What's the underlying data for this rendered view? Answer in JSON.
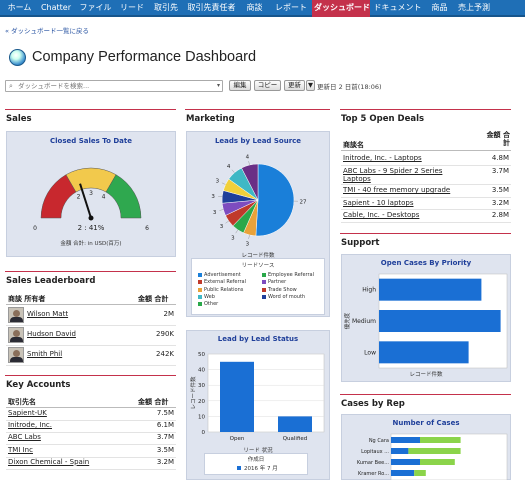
{
  "nav": {
    "tabs": [
      {
        "label": "ホーム",
        "active": false
      },
      {
        "label": "Chatter",
        "active": false
      },
      {
        "label": "ファイル",
        "active": false
      },
      {
        "label": "リード",
        "active": false
      },
      {
        "label": "取引先",
        "active": false
      },
      {
        "label": "取引先責任者",
        "active": false
      },
      {
        "label": "商談",
        "active": false
      },
      {
        "label": "レポート",
        "active": false
      },
      {
        "label": "ダッシュボード",
        "active": true
      },
      {
        "label": "ドキュメント",
        "active": false
      },
      {
        "label": "商品",
        "active": false
      },
      {
        "label": "売上予測",
        "active": false
      }
    ]
  },
  "back_link": "« ダッシュボード一覧に戻る",
  "page": {
    "title": "Company Performance Dashboard",
    "icon": "dashboard-gauge-icon"
  },
  "search": {
    "placeholder": "ダッシュボードを検索...",
    "icon": "search-icon"
  },
  "toolbar": {
    "edit": "編集",
    "copy": "コピー",
    "refresh": "更新",
    "refresh_dropdown": "▼",
    "updated": "更新日 2 日前(18:06)"
  },
  "colors": {
    "nav": "#1f6fb6",
    "active_tab": "#c4314b",
    "bar": "#1a6fd4",
    "green": "#8bd44a",
    "panel": "#dfe4ef"
  },
  "sales": {
    "section_title": "Sales",
    "chart_title": "Closed Sales To Date",
    "gauge_value_label": "2 : 41%",
    "gauge_caption": "金額 合計: in USD(百万)"
  },
  "leaderboard": {
    "section_title": "Sales Leaderboard",
    "col_owner": "商談 所有者",
    "col_amount": "金額 合計",
    "rows": [
      {
        "name": "Wilson Matt",
        "amount": "2M"
      },
      {
        "name": "Hudson David",
        "amount": "290K"
      },
      {
        "name": "Smith Phil",
        "amount": "242K"
      }
    ]
  },
  "accounts": {
    "section_title": "Key Accounts",
    "col_name": "取引先名",
    "col_amount": "金額 合計",
    "rows": [
      {
        "name": "Sapient-UK",
        "amount": "7.5M"
      },
      {
        "name": "Initrode, Inc.",
        "amount": "6.1M"
      },
      {
        "name": "ABC Labs",
        "amount": "3.7M"
      },
      {
        "name": "TMI Inc",
        "amount": "3.5M"
      },
      {
        "name": "Dixon Chemical - Spain",
        "amount": "3.2M"
      }
    ]
  },
  "marketing": {
    "section_title": "Marketing",
    "pie_title": "Leads by Lead Source",
    "pie_xlabel": "レコード件数",
    "legend_title": "リードソース",
    "bar_title": "Lead by Lead Status",
    "bar_ylabel": "レコード件数",
    "bar_xlabel": "リード 状況",
    "bar_filter_title": "作成日",
    "bar_filter_item": "2016 年 7 月"
  },
  "deals": {
    "section_title": "Top 5 Open Deals",
    "col_name": "商談名",
    "col_amount": "金額 合計",
    "rows": [
      {
        "name": "Initrode, Inc. - Laptops",
        "amount": "4.8M"
      },
      {
        "name": "ABC Labs - 9 Spider 2 Series Laptops",
        "amount": "3.7M"
      },
      {
        "name": "TMI - 40 free memory upgrade",
        "amount": "3.5M"
      },
      {
        "name": "Sapient - 10 laptops",
        "amount": "3.2M"
      },
      {
        "name": "Cable, Inc. - Desktops",
        "amount": "2.8M"
      }
    ]
  },
  "support": {
    "section_title": "Support",
    "chart_title": "Open Cases By Priority",
    "xlabel": "レコード件数",
    "ylabel": "優先度"
  },
  "cases": {
    "section_title": "Cases by Rep",
    "chart_title": "Number of Cases"
  },
  "chart_data": [
    {
      "type": "gauge",
      "title": "Closed Sales To Date",
      "ticks": [
        "0",
        "2",
        "3",
        "4",
        "6"
      ],
      "range": [
        0,
        6
      ],
      "value": 2.41,
      "value_label": "2 : 41%",
      "bands": [
        {
          "from": 0,
          "to": 2,
          "color": "#c8282e"
        },
        {
          "from": 2,
          "to": 4,
          "color": "#f2c94c"
        },
        {
          "from": 4,
          "to": 6,
          "color": "#2fa84f"
        }
      ],
      "caption": "金額 合計: in USD(百万)"
    },
    {
      "type": "pie",
      "title": "Leads by Lead Source",
      "xlabel": "レコード件数",
      "slice_labels": [
        "27",
        "3",
        "3",
        "3",
        "3",
        "3",
        "3",
        "4",
        "4"
      ],
      "values": [
        27,
        3,
        3,
        3,
        3,
        3,
        3,
        4,
        4
      ],
      "colors": [
        "#1a7fd9",
        "#e8a23a",
        "#2aa84a",
        "#c0392b",
        "#7d4cbf",
        "#1f3f9a",
        "#f1d03a",
        "#3fb8c5",
        "#6a2f86"
      ],
      "legend_title": "リードソース",
      "legend": [
        "Advertisement",
        "Employee Referral",
        "External Referral",
        "Partner",
        "Public Relations",
        "Trade Show",
        "Web",
        "Word of mouth",
        "Other"
      ],
      "legend_colors": [
        "#1a7fd9",
        "#2aa84a",
        "#c0392b",
        "#7d4cbf",
        "#e8a23a",
        "#c0392b",
        "#3fb8c5",
        "#1f3f9a",
        "#2aa84a"
      ]
    },
    {
      "type": "bar",
      "title": "Lead by Lead Status",
      "categories": [
        "Open",
        "Qualified"
      ],
      "values": [
        45,
        10
      ],
      "ylim": [
        0,
        50
      ],
      "yticks": [
        "50",
        "40",
        "30",
        "20",
        "10",
        "0"
      ],
      "xlabel": "リード 状況",
      "ylabel": "レコード件数"
    },
    {
      "type": "bar",
      "orientation": "horizontal",
      "title": "Open Cases By Priority",
      "categories": [
        "High",
        "Medium",
        "Low"
      ],
      "values": [
        4.8,
        5.7,
        4.2
      ],
      "xlabel": "レコード件数",
      "ylabel": "優先度"
    },
    {
      "type": "bar",
      "orientation": "horizontal",
      "stacked": true,
      "title": "Number of Cases",
      "categories": [
        "Ng Cara",
        "Lopitaux ...",
        "Kumar Bee...",
        "Kramer Ro..."
      ],
      "series": [
        {
          "values": [
            5,
            3,
            5,
            4
          ]
        },
        {
          "values": [
            7,
            9,
            6,
            2
          ]
        }
      ]
    }
  ]
}
